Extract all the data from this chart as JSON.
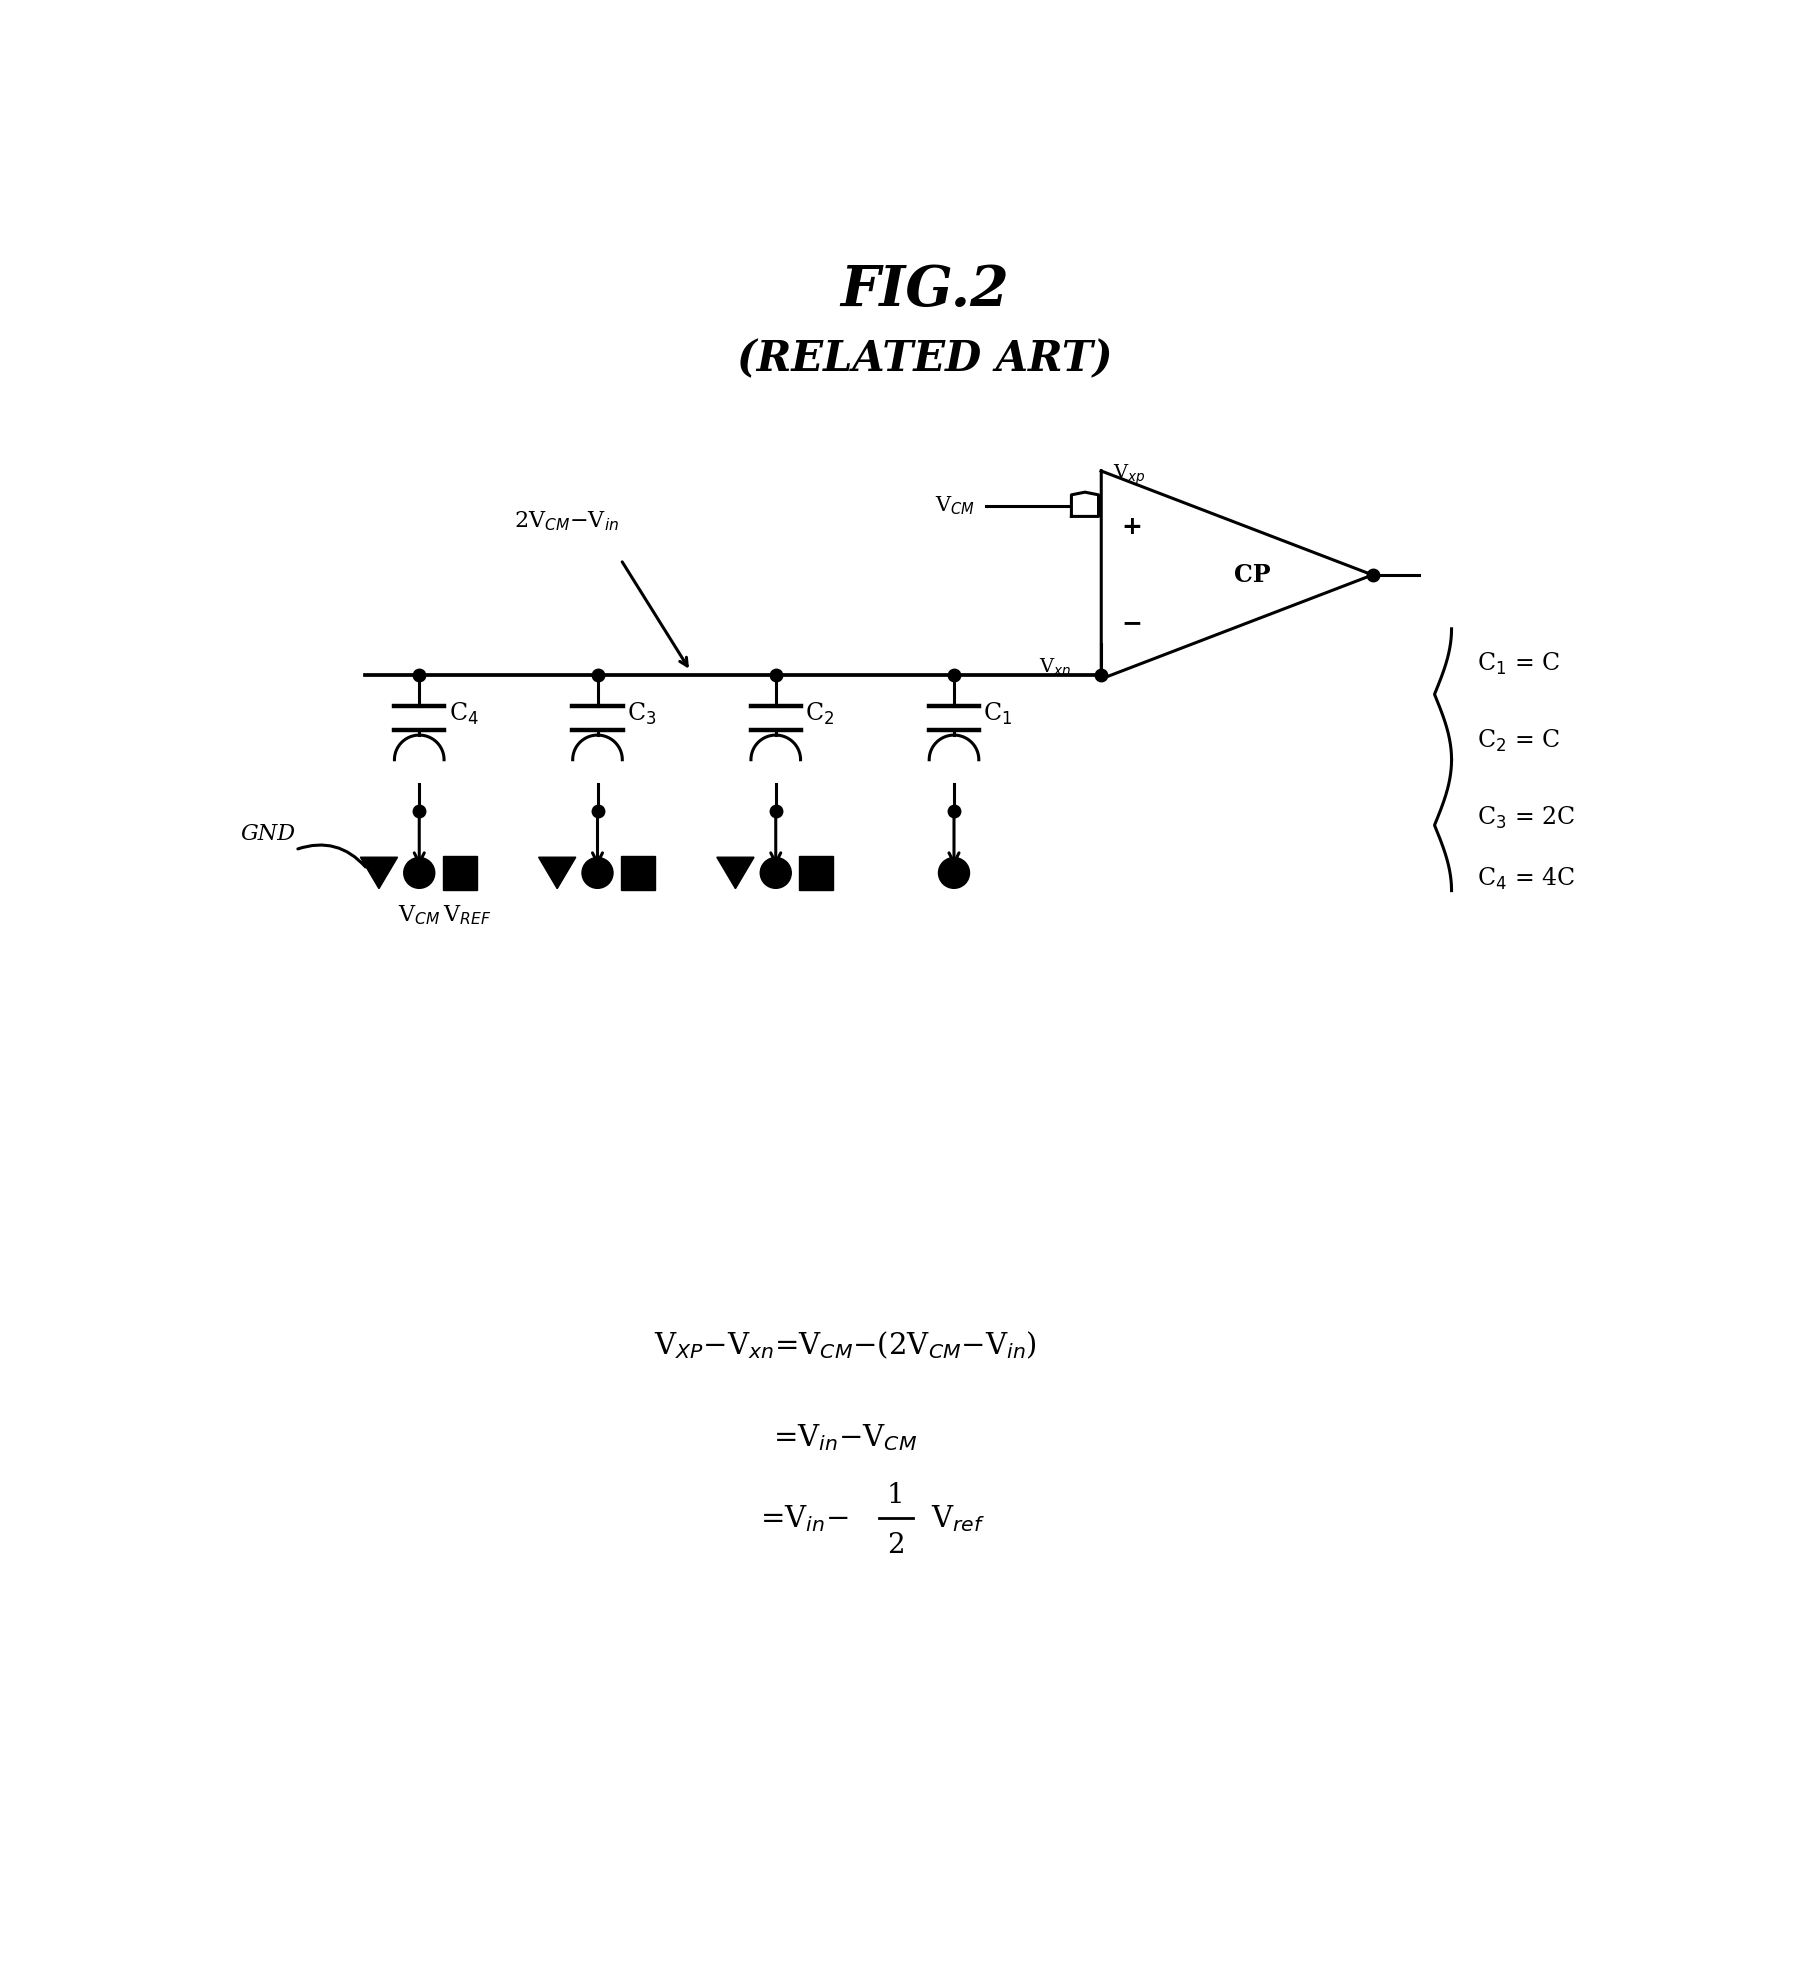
{
  "title": "FIG.2",
  "subtitle": "(RELATED ART)",
  "bg_color": "#ffffff",
  "line_color": "#000000",
  "title_fontsize": 40,
  "subtitle_fontsize": 30
}
